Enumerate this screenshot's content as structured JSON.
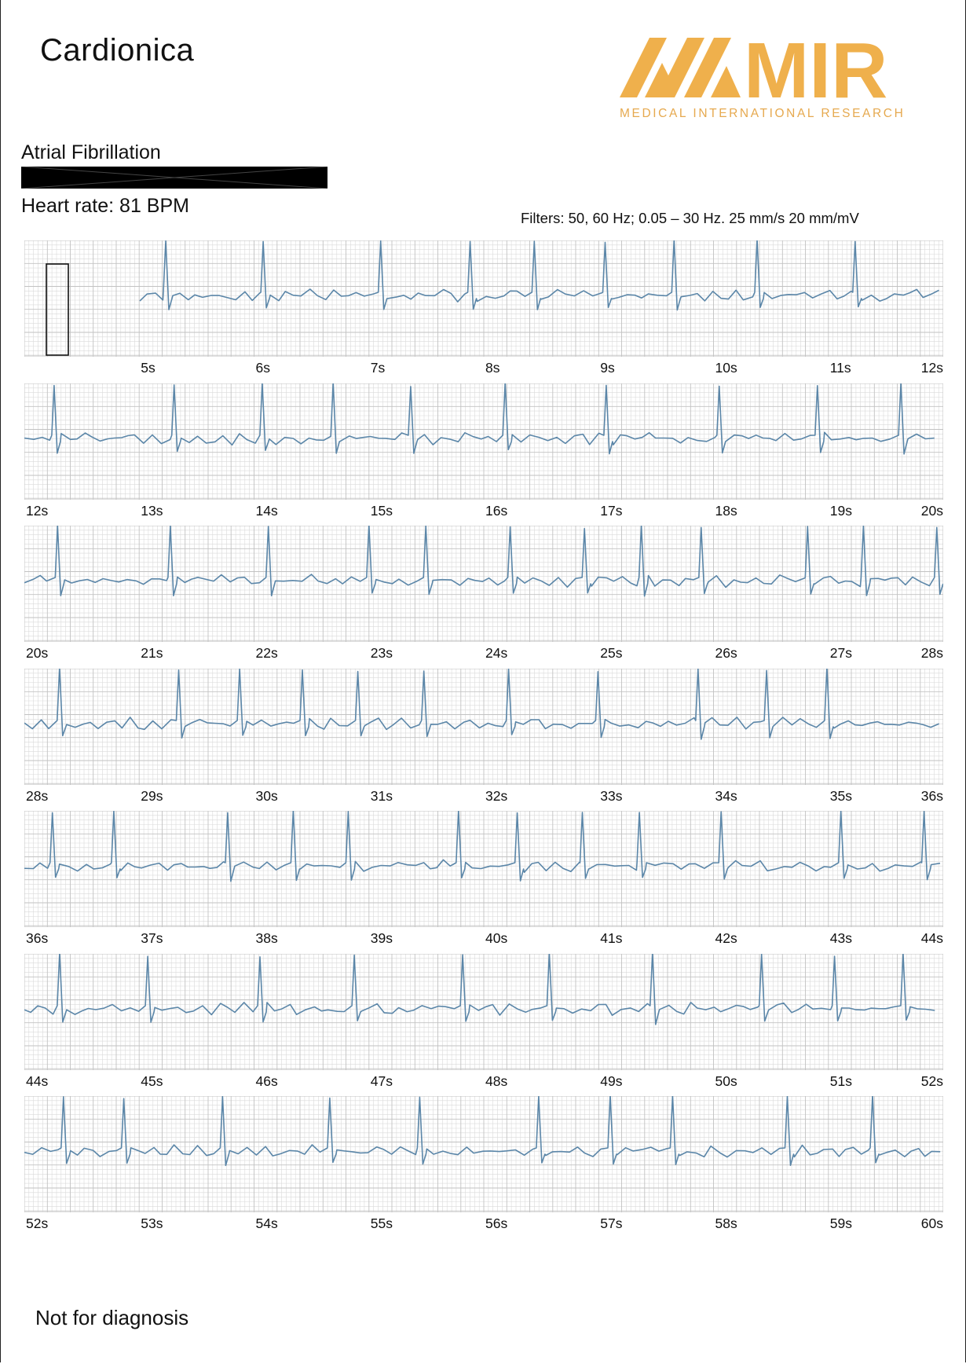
{
  "header": {
    "brand": "Cardionica",
    "logo_text": "MIR",
    "logo_subtitle": "MEDICAL INTERNATIONAL RESEARCH",
    "logo_color": "#efb04c"
  },
  "report": {
    "rhythm": "Atrial Fibrillation",
    "heart_rate": "Heart rate: 81 BPM",
    "filters": "Filters: 50, 60 Hz; 0.05 – 30 Hz.   25 mm/s  20 mm/mV"
  },
  "ecg": {
    "trace_color": "#5b86a8",
    "grid_minor_color": "#dadada",
    "grid_major_color": "#c2c2c2",
    "strips": [
      {
        "start": 4,
        "end": 12,
        "labels": [
          "5s",
          "6s",
          "7s",
          "8s",
          "9s",
          "10s",
          "11s",
          "12s"
        ]
      },
      {
        "start": 12,
        "end": 20,
        "labels": [
          "12s",
          "13s",
          "14s",
          "15s",
          "16s",
          "17s",
          "18s",
          "19s",
          "20s"
        ]
      },
      {
        "start": 20,
        "end": 28,
        "labels": [
          "20s",
          "21s",
          "22s",
          "23s",
          "24s",
          "25s",
          "26s",
          "27s",
          "28s"
        ]
      },
      {
        "start": 28,
        "end": 36,
        "labels": [
          "28s",
          "29s",
          "30s",
          "31s",
          "32s",
          "33s",
          "34s",
          "35s",
          "36s"
        ]
      },
      {
        "start": 36,
        "end": 44,
        "labels": [
          "36s",
          "37s",
          "38s",
          "39s",
          "40s",
          "41s",
          "42s",
          "43s",
          "44s"
        ]
      },
      {
        "start": 44,
        "end": 52,
        "labels": [
          "44s",
          "45s",
          "46s",
          "47s",
          "48s",
          "49s",
          "50s",
          "51s",
          "52s"
        ]
      },
      {
        "start": 52,
        "end": 60,
        "labels": [
          "52s",
          "53s",
          "54s",
          "55s",
          "56s",
          "57s",
          "58s",
          "59s",
          "60s"
        ]
      }
    ]
  },
  "footer": {
    "disclaimer": "Not for diagnosis"
  }
}
